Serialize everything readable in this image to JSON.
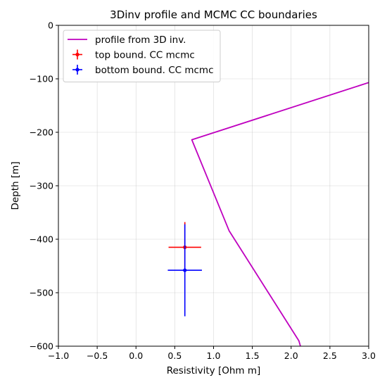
{
  "chart_data": {
    "type": "line",
    "title": "3Dinv profile and MCMC CC boundaries",
    "xlabel": "Resistivity [Ohm m]",
    "ylabel": "Depth [m]",
    "xlim": [
      -1.0,
      3.0
    ],
    "ylim": [
      -600,
      0
    ],
    "xticks": [
      -1.0,
      -0.5,
      0.0,
      0.5,
      1.0,
      1.5,
      2.0,
      2.5,
      3.0
    ],
    "xtick_labels": [
      "−1.0",
      "−0.5",
      "0.0",
      "0.5",
      "1.0",
      "1.5",
      "2.0",
      "2.5",
      "3.0"
    ],
    "yticks": [
      0,
      -100,
      -200,
      -300,
      -400,
      -500,
      -600
    ],
    "ytick_labels": [
      "0",
      "−100",
      "−200",
      "−300",
      "−400",
      "−500",
      "−600"
    ],
    "grid": true,
    "legend_position": "top-left",
    "series": [
      {
        "name": "profile from 3D inv.",
        "kind": "line",
        "color": "#bf00bf",
        "x": [
          3.0,
          0.72,
          1.2,
          2.1,
          2.12
        ],
        "y": [
          -107,
          -214,
          -384,
          -590,
          -600
        ]
      },
      {
        "name": "top bound. CC mcmc",
        "kind": "errorbar",
        "color": "#ff0000",
        "x": [
          0.63
        ],
        "y": [
          -415
        ],
        "xerr": [
          0.21
        ],
        "yerr": [
          47
        ]
      },
      {
        "name": "bottom bound. CC mcmc",
        "kind": "errorbar",
        "color": "#0000ff",
        "x": [
          0.63
        ],
        "y": [
          -458
        ],
        "xerr": [
          0.22
        ],
        "yerr": [
          86
        ]
      }
    ]
  }
}
